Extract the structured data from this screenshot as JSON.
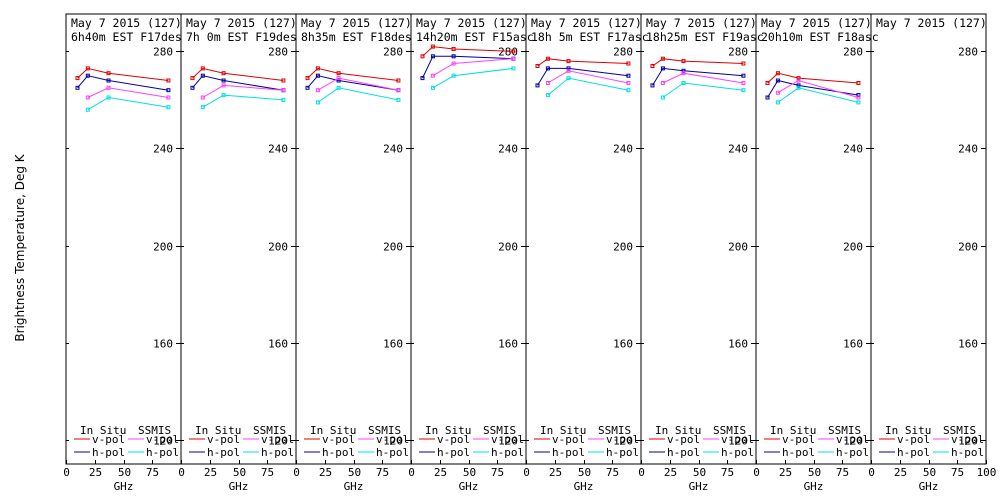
{
  "chart_data": {
    "type": "line",
    "ylabel": "Brightness Temperature, Deg K",
    "xlabel": "GHz",
    "xlim": [
      0,
      100
    ],
    "ylim": [
      110,
      295
    ],
    "x_ticks": [
      0,
      25,
      50,
      75,
      100
    ],
    "y_ticks": [
      120,
      160,
      200,
      240,
      280
    ],
    "legend": {
      "left_header": "In Situ",
      "right_header": "SSMIS",
      "entries": [
        "v-pol",
        "h-pol"
      ]
    },
    "colors": {
      "insitu_v": "#e00000",
      "insitu_h": "#0000a0",
      "ssmis_v": "#ff40ff",
      "ssmis_h": "#00e0e0"
    },
    "panels": [
      {
        "date": "May 7 2015 (127)",
        "time": "6h40m  EST F17des",
        "series": [
          {
            "name": "In Situ v-pol",
            "x": [
              10,
              19,
              37,
              89
            ],
            "y": [
              269,
              273,
              271,
              268
            ]
          },
          {
            "name": "In Situ h-pol",
            "x": [
              10,
              19,
              37,
              89
            ],
            "y": [
              265,
              270,
              268,
              264
            ]
          },
          {
            "name": "SSMIS v-pol",
            "x": [
              19,
              37,
              89
            ],
            "y": [
              261,
              265,
              261
            ]
          },
          {
            "name": "SSMIS h-pol",
            "x": [
              19,
              37,
              89
            ],
            "y": [
              256,
              261,
              257
            ]
          }
        ]
      },
      {
        "date": "May 7 2015 (127)",
        "time": "7h 0m  EST F19des",
        "series": [
          {
            "name": "In Situ v-pol",
            "x": [
              10,
              19,
              37,
              89
            ],
            "y": [
              269,
              273,
              271,
              268
            ]
          },
          {
            "name": "In Situ h-pol",
            "x": [
              10,
              19,
              37,
              89
            ],
            "y": [
              265,
              270,
              268,
              264
            ]
          },
          {
            "name": "SSMIS v-pol",
            "x": [
              19,
              37,
              89
            ],
            "y": [
              261,
              266,
              264
            ]
          },
          {
            "name": "SSMIS h-pol",
            "x": [
              19,
              37,
              89
            ],
            "y": [
              257,
              262,
              260
            ]
          }
        ]
      },
      {
        "date": "May 7 2015 (127)",
        "time": "8h35m  EST F18des",
        "series": [
          {
            "name": "In Situ v-pol",
            "x": [
              10,
              19,
              37,
              89
            ],
            "y": [
              269,
              273,
              271,
              268
            ]
          },
          {
            "name": "In Situ h-pol",
            "x": [
              10,
              19,
              37,
              89
            ],
            "y": [
              265,
              270,
              268,
              264
            ]
          },
          {
            "name": "SSMIS v-pol",
            "x": [
              19,
              37,
              89
            ],
            "y": [
              264,
              269,
              264
            ]
          },
          {
            "name": "SSMIS h-pol",
            "x": [
              19,
              37,
              89
            ],
            "y": [
              259,
              265,
              260
            ]
          }
        ]
      },
      {
        "date": "May 7 2015 (127)",
        "time": "14h20m  EST F15asc",
        "series": [
          {
            "name": "In Situ v-pol",
            "x": [
              10,
              19,
              37,
              89
            ],
            "y": [
              278,
              282,
              281,
              280
            ]
          },
          {
            "name": "In Situ h-pol",
            "x": [
              10,
              19,
              37,
              89
            ],
            "y": [
              269,
              278,
              278,
              277
            ]
          },
          {
            "name": "SSMIS v-pol",
            "x": [
              19,
              37,
              89
            ],
            "y": [
              270,
              275,
              277
            ]
          },
          {
            "name": "SSMIS h-pol",
            "x": [
              19,
              37,
              89
            ],
            "y": [
              265,
              270,
              273
            ]
          }
        ]
      },
      {
        "date": "May 7 2015 (127)",
        "time": "18h 5m  EST F17asc",
        "series": [
          {
            "name": "In Situ v-pol",
            "x": [
              10,
              19,
              37,
              89
            ],
            "y": [
              274,
              277,
              276,
              275
            ]
          },
          {
            "name": "In Situ h-pol",
            "x": [
              10,
              19,
              37,
              89
            ],
            "y": [
              266,
              273,
              273,
              270
            ]
          },
          {
            "name": "SSMIS v-pol",
            "x": [
              19,
              37,
              89
            ],
            "y": [
              267,
              272,
              267
            ]
          },
          {
            "name": "SSMIS h-pol",
            "x": [
              19,
              37,
              89
            ],
            "y": [
              262,
              269,
              264
            ]
          }
        ]
      },
      {
        "date": "May 7 2015 (127)",
        "time": "18h25m  EST F19asc",
        "series": [
          {
            "name": "In Situ v-pol",
            "x": [
              10,
              19,
              37,
              89
            ],
            "y": [
              274,
              277,
              276,
              275
            ]
          },
          {
            "name": "In Situ h-pol",
            "x": [
              10,
              19,
              37,
              89
            ],
            "y": [
              266,
              273,
              272,
              270
            ]
          },
          {
            "name": "SSMIS v-pol",
            "x": [
              19,
              37,
              89
            ],
            "y": [
              267,
              271,
              267
            ]
          },
          {
            "name": "SSMIS h-pol",
            "x": [
              19,
              37,
              89
            ],
            "y": [
              261,
              267,
              264
            ]
          }
        ]
      },
      {
        "date": "May 7 2015 (127)",
        "time": "20h10m  EST F18asc",
        "series": [
          {
            "name": "In Situ v-pol",
            "x": [
              10,
              19,
              37,
              89
            ],
            "y": [
              267,
              271,
              269,
              267
            ]
          },
          {
            "name": "In Situ h-pol",
            "x": [
              10,
              19,
              37,
              89
            ],
            "y": [
              261,
              268,
              266,
              262
            ]
          },
          {
            "name": "SSMIS v-pol",
            "x": [
              19,
              37,
              89
            ],
            "y": [
              263,
              268,
              261
            ]
          },
          {
            "name": "SSMIS h-pol",
            "x": [
              19,
              37,
              89
            ],
            "y": [
              259,
              265,
              259
            ]
          }
        ]
      },
      {
        "date": "May 7 2015 (127)",
        "time": "",
        "series": []
      }
    ]
  }
}
